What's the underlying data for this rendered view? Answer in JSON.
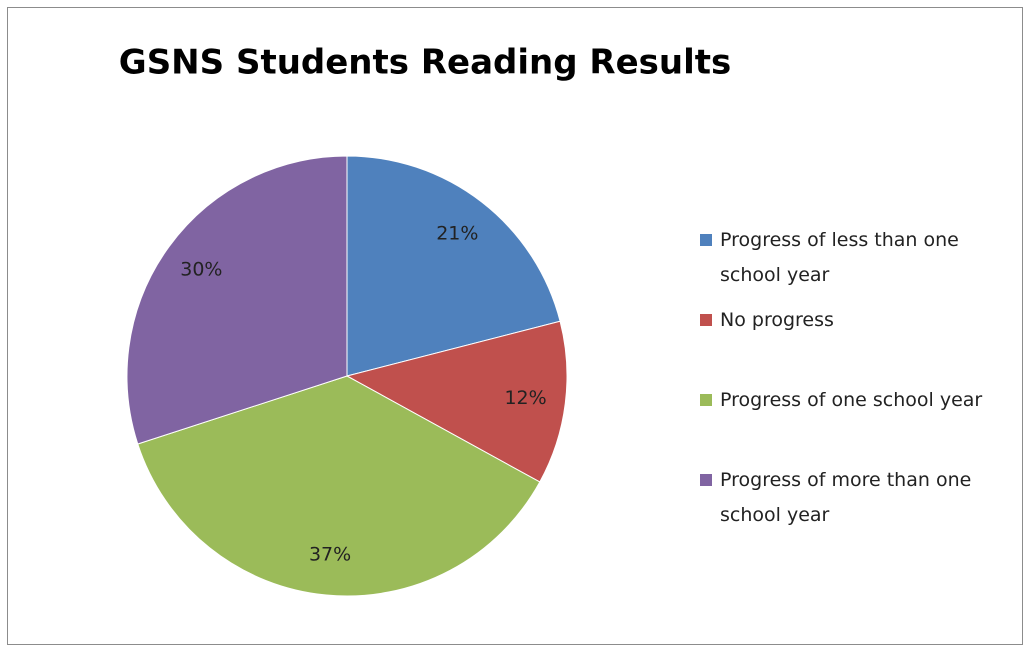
{
  "chart_data": {
    "type": "pie",
    "title": "GSNS Students Reading Results",
    "categories": [
      "Progress of less than one school year",
      "No progress",
      "Progress of one school year",
      "Progress of more than one school year"
    ],
    "values": [
      21,
      12,
      37,
      30
    ],
    "value_labels": [
      "21%",
      "12%",
      "37%",
      "30%"
    ],
    "colors": [
      "#4f81bd",
      "#c0504d",
      "#9bbb59",
      "#8064a2"
    ],
    "legend": "right"
  }
}
